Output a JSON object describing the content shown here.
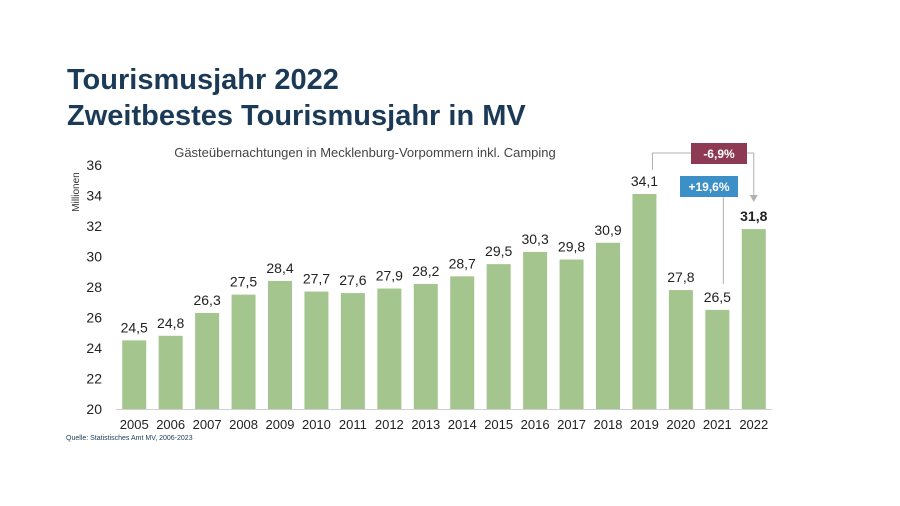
{
  "header": {
    "title": "Tourismusjahr 2022",
    "subtitle": "Zweitbestes Tourismusjahr in MV"
  },
  "source": "Quelle: Statistisches Amt MV, 2006-2023",
  "chart_data": {
    "type": "bar",
    "title": "Gästeübernachtungen in Mecklenburg-Vorpommern inkl. Camping",
    "ylabel": "Millionen",
    "xlabel": "",
    "ylim": [
      20,
      36
    ],
    "yticks": [
      "20",
      "22",
      "24",
      "26",
      "28",
      "30",
      "32",
      "34",
      "36"
    ],
    "categories": [
      "2005",
      "2006",
      "2007",
      "2008",
      "2009",
      "2010",
      "2011",
      "2012",
      "2013",
      "2014",
      "2015",
      "2016",
      "2017",
      "2018",
      "2019",
      "2020",
      "2021",
      "2022"
    ],
    "values": [
      24.5,
      24.8,
      26.3,
      27.5,
      28.4,
      27.7,
      27.6,
      27.9,
      28.2,
      28.7,
      29.5,
      30.3,
      29.8,
      30.9,
      34.1,
      27.8,
      26.5,
      31.8
    ],
    "labels": [
      "24,5",
      "24,8",
      "26,3",
      "27,5",
      "28,4",
      "27,7",
      "27,6",
      "27,9",
      "28,2",
      "28,7",
      "29,5",
      "30,3",
      "29,8",
      "30,9",
      "34,1",
      "27,8",
      "26,5",
      "31,8"
    ],
    "grid": false,
    "bar_color": "#a4c68e",
    "annotations": [
      {
        "text": "-6,9%",
        "color": "#8e3a55",
        "from": "2019",
        "to": "2022"
      },
      {
        "text": "+19,6%",
        "color": "#3d8fc8",
        "from": "2021",
        "to": "2022"
      }
    ]
  }
}
